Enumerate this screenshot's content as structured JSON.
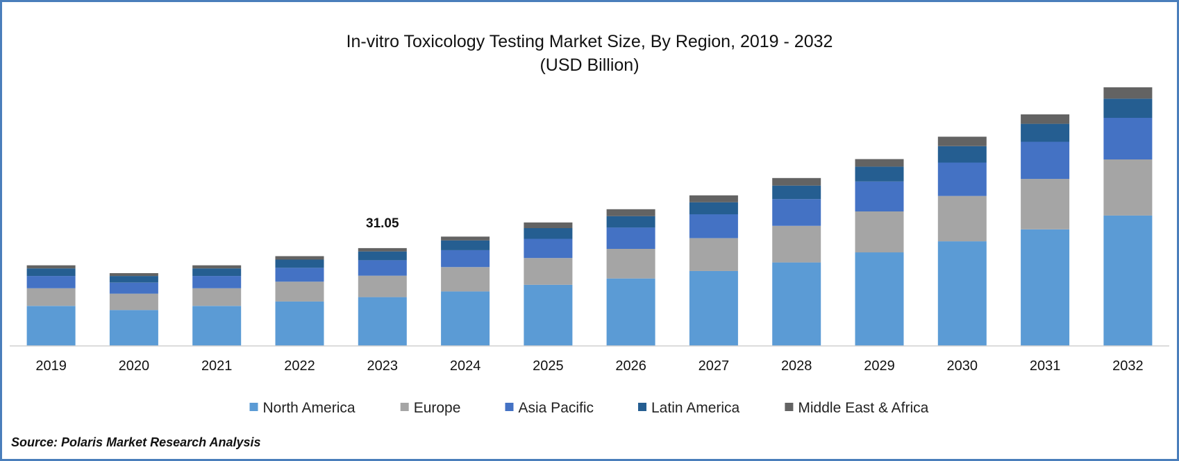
{
  "chart_data": {
    "type": "bar",
    "stacked": true,
    "title": "In-vitro Toxicology Testing Market Size, By Region, 2019 - 2032",
    "subtitle": "(USD Billion)",
    "xlabel": "",
    "ylabel": "",
    "categories": [
      "2019",
      "2020",
      "2021",
      "2022",
      "2023",
      "2024",
      "2025",
      "2026",
      "2027",
      "2028",
      "2029",
      "2030",
      "2031",
      "2032"
    ],
    "series": [
      {
        "name": "North America",
        "color": "#5b9bd5",
        "values": [
          12.7,
          11.4,
          12.7,
          14.1,
          15.5,
          17.3,
          19.4,
          21.4,
          23.8,
          26.5,
          29.7,
          33.2,
          37.0,
          41.4
        ]
      },
      {
        "name": "Europe",
        "color": "#a5a5a5",
        "values": [
          5.6,
          5.2,
          5.6,
          6.3,
          6.8,
          7.7,
          8.5,
          9.4,
          10.4,
          11.6,
          13.0,
          14.4,
          16.0,
          17.8
        ]
      },
      {
        "name": "Asia Pacific",
        "color": "#4472c4",
        "values": [
          3.9,
          3.5,
          3.9,
          4.4,
          4.9,
          5.4,
          6.1,
          6.8,
          7.6,
          8.5,
          9.5,
          10.6,
          11.8,
          13.2
        ]
      },
      {
        "name": "Latin America",
        "color": "#255e91",
        "values": [
          2.4,
          2.1,
          2.4,
          2.6,
          2.8,
          3.1,
          3.4,
          3.6,
          3.8,
          4.3,
          4.7,
          5.2,
          5.7,
          6.1
        ]
      },
      {
        "name": "Middle East & Africa",
        "color": "#636363",
        "values": [
          1.0,
          0.9,
          1.0,
          1.1,
          1.05,
          1.2,
          1.8,
          2.2,
          2.2,
          2.4,
          2.4,
          3.0,
          3.0,
          3.6
        ]
      }
    ],
    "ylim": [
      0,
      90
    ],
    "grid": false,
    "legend_position": "bottom",
    "annotations": [
      {
        "category": "2023",
        "label": "31.05"
      }
    ]
  },
  "source": "Source: Polaris Market Research Analysis"
}
